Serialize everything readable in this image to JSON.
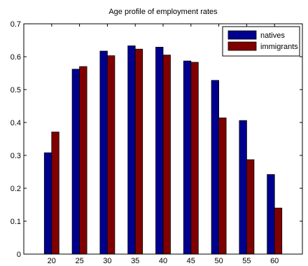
{
  "chart_data": {
    "type": "bar",
    "title": "Age profile of employment rates",
    "xlabel": "",
    "ylabel": "",
    "categories": [
      "20",
      "25",
      "30",
      "35",
      "40",
      "45",
      "50",
      "55",
      "60"
    ],
    "series": [
      {
        "name": "natives",
        "color": "#00008f",
        "values": [
          0.308,
          0.562,
          0.617,
          0.633,
          0.629,
          0.587,
          0.528,
          0.406,
          0.242
        ]
      },
      {
        "name": "immigrants",
        "color": "#800000",
        "values": [
          0.371,
          0.57,
          0.603,
          0.623,
          0.605,
          0.583,
          0.414,
          0.287,
          0.14
        ]
      }
    ],
    "ylim": [
      0,
      0.7
    ],
    "yticks": [
      "0",
      "0.1",
      "0.2",
      "0.3",
      "0.4",
      "0.5",
      "0.6",
      "0.7"
    ],
    "grid": false,
    "legend_position": "top-right"
  }
}
